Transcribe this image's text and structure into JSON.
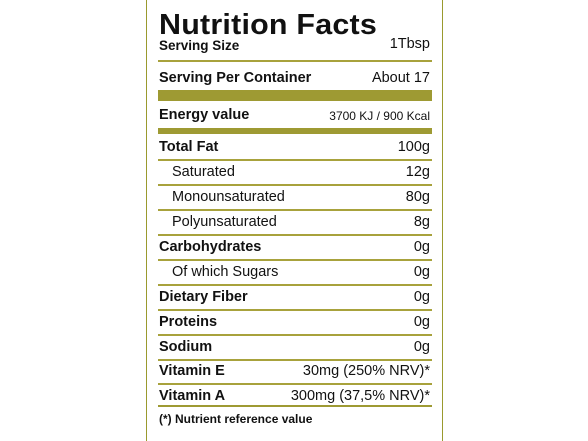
{
  "label": {
    "title": "Nutrition Facts",
    "serving_size": {
      "label": "Serving Size",
      "value": "1Tbsp"
    },
    "servings_per_container": {
      "label": "Serving Per Container",
      "value": "About 17"
    },
    "energy": {
      "label": "Energy value",
      "value": "3700 KJ / 900 Kcal"
    },
    "rows": [
      {
        "label": "Total Fat",
        "value": "100g"
      },
      {
        "label": "Saturated",
        "value": "12g"
      },
      {
        "label": "Monounsaturated",
        "value": "80g"
      },
      {
        "label": "Polyunsaturated",
        "value": "8g"
      },
      {
        "label": "Carbohydrates",
        "value": "0g"
      },
      {
        "label": "Of which Sugars",
        "value": "0g"
      },
      {
        "label": "Dietary Fiber",
        "value": "0g"
      },
      {
        "label": "Proteins",
        "value": "0g"
      },
      {
        "label": "Sodium",
        "value": "0g"
      },
      {
        "label": "Vitamin E",
        "value": "30mg (250% NRV)*"
      },
      {
        "label": "Vitamin A",
        "value": "300mg (37,5% NRV)*"
      }
    ],
    "footnote": "(*) Nutrient reference value"
  },
  "colors": {
    "rule": "#9e9a33",
    "text": "#111111"
  }
}
